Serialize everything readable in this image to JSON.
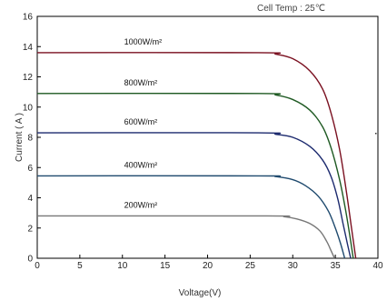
{
  "chart_data": {
    "type": "line",
    "title": "Cell Temp : 25℃",
    "xlabel": "Voltage(V)",
    "ylabel": "Current ( A )",
    "xlim": [
      0,
      40
    ],
    "ylim": [
      0,
      16
    ],
    "x_ticks": [
      "0",
      "5",
      "10",
      "15",
      "20",
      "25",
      "30",
      "35",
      "40"
    ],
    "y_ticks": [
      "0",
      "2",
      "4",
      "6",
      "8",
      "10",
      "12",
      "14",
      "16"
    ],
    "grid": false,
    "series": [
      {
        "name": "1000W/m²",
        "color": "#7a1020",
        "points": [
          [
            0,
            13.6
          ],
          [
            26,
            13.6
          ],
          [
            28,
            13.5
          ],
          [
            30,
            13.2
          ],
          [
            32,
            12.4
          ],
          [
            33.5,
            11.2
          ],
          [
            34.5,
            9.6
          ],
          [
            35.5,
            7.2
          ],
          [
            36.3,
            4.4
          ],
          [
            36.9,
            2.0
          ],
          [
            37.4,
            0
          ]
        ]
      },
      {
        "name": "800W/m²",
        "color": "#1f5a23",
        "points": [
          [
            0,
            10.9
          ],
          [
            26,
            10.9
          ],
          [
            28,
            10.8
          ],
          [
            30,
            10.5
          ],
          [
            32,
            9.8
          ],
          [
            33.5,
            8.7
          ],
          [
            34.5,
            7.3
          ],
          [
            35.5,
            5.2
          ],
          [
            36.2,
            3.2
          ],
          [
            36.7,
            1.5
          ],
          [
            37.1,
            0
          ]
        ]
      },
      {
        "name": "600W/m²",
        "color": "#1c2a6e",
        "points": [
          [
            0,
            8.3
          ],
          [
            26,
            8.3
          ],
          [
            28,
            8.2
          ],
          [
            30,
            8.0
          ],
          [
            32,
            7.4
          ],
          [
            33.5,
            6.5
          ],
          [
            34.5,
            5.4
          ],
          [
            35.3,
            3.9
          ],
          [
            35.9,
            2.3
          ],
          [
            36.4,
            1.0
          ],
          [
            36.8,
            0
          ]
        ]
      },
      {
        "name": "400W/m²",
        "color": "#1f4a6e",
        "points": [
          [
            0,
            5.45
          ],
          [
            26,
            5.45
          ],
          [
            28,
            5.4
          ],
          [
            30,
            5.2
          ],
          [
            31.5,
            4.8
          ],
          [
            33,
            4.1
          ],
          [
            34.2,
            3.1
          ],
          [
            35.0,
            2.0
          ],
          [
            35.6,
            1.0
          ],
          [
            36.1,
            0
          ]
        ]
      },
      {
        "name": "200W/m²",
        "color": "#777777",
        "points": [
          [
            0,
            2.8
          ],
          [
            27,
            2.8
          ],
          [
            29,
            2.75
          ],
          [
            30.5,
            2.6
          ],
          [
            32,
            2.3
          ],
          [
            33.2,
            1.8
          ],
          [
            34.0,
            1.1
          ],
          [
            34.5,
            0.5
          ],
          [
            34.9,
            0
          ]
        ]
      }
    ]
  }
}
